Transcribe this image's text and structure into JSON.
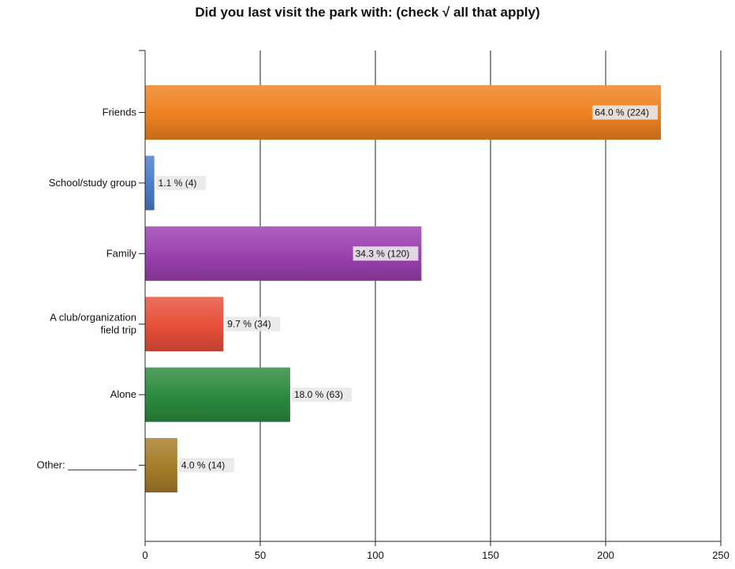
{
  "chart_data": {
    "type": "bar",
    "orientation": "horizontal",
    "title": "Did you last visit the park with: (check √ all that apply)",
    "xlabel": "",
    "ylabel": "",
    "xlim": [
      0,
      250
    ],
    "x_ticks": [
      0,
      50,
      100,
      150,
      200,
      250
    ],
    "grid": true,
    "categories": [
      [
        "Friends"
      ],
      [
        "School/study group"
      ],
      [
        "Family"
      ],
      [
        "A club/organization",
        "field trip"
      ],
      [
        "Alone"
      ],
      [
        "Other: ____________"
      ]
    ],
    "values": [
      224,
      4,
      120,
      34,
      63,
      14
    ],
    "data_labels": [
      "64.0 % (224)",
      "1.1 % (4)",
      "34.3 % (120)",
      "9.7 % (34)",
      "18.0 % (63)",
      "4.0 % (14)"
    ],
    "colors": [
      "#ee8120",
      "#4a7ccc",
      "#9b3fb0",
      "#e6503a",
      "#2b8a3e",
      "#a67c2a"
    ]
  }
}
